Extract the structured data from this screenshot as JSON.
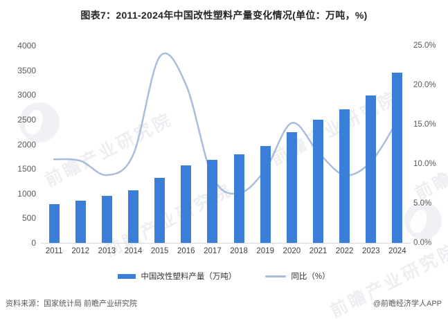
{
  "title": "图表7：2011-2024年中国改性塑料产量变化情况(单位：万吨，%)",
  "watermark": {
    "text": "前瞻产业研究院"
  },
  "legend": {
    "bar_label": "中国改性塑料产量（万吨）",
    "line_label": "同比（%）"
  },
  "footer": {
    "source": "资料来源：国家统计局 前瞻产业研究院",
    "credit": "@前瞻经济学人APP"
  },
  "colors": {
    "bar": "#3b7ed9",
    "line": "#a9bcdc",
    "axis_text": "#595959",
    "axis_line": "#d9d9d9",
    "title_text": "#262626"
  },
  "chart_data": {
    "type": "bar",
    "subtype": "bar+line combo",
    "title": "图表7：2011-2024年中国改性塑料产量变化情况(单位：万吨，%)",
    "categories": [
      "2011",
      "2012",
      "2013",
      "2014",
      "2015",
      "2016",
      "2017",
      "2018",
      "2019",
      "2020",
      "2021",
      "2022",
      "2023",
      "2024"
    ],
    "series": [
      {
        "name": "中国改性塑料产量（万吨）",
        "type": "bar",
        "axis": "left",
        "values": [
          790,
          860,
          950,
          1070,
          1320,
          1570,
          1680,
          1800,
          1960,
          2250,
          2500,
          2710,
          2990,
          3450
        ]
      },
      {
        "name": "同比（%）",
        "type": "line",
        "axis": "right",
        "smooth": true,
        "values": [
          10.6,
          10.4,
          8.6,
          11.2,
          23.6,
          20.0,
          8.4,
          6.3,
          9.3,
          15.2,
          11.5,
          8.6,
          10.3,
          15.5
        ]
      }
    ],
    "left_axis": {
      "min": 0,
      "max": 4000,
      "step": 500,
      "tick_labels": [
        "4000",
        "3500",
        "3000",
        "2500",
        "2000",
        "1500",
        "1000",
        "500",
        "0"
      ]
    },
    "right_axis": {
      "min": 0,
      "max": 25,
      "step": 5,
      "tick_labels": [
        "25.0%",
        "20.0%",
        "15.0%",
        "10.0%",
        "5.0%",
        "0.0%"
      ]
    },
    "grid": false,
    "legend_position": "bottom"
  }
}
